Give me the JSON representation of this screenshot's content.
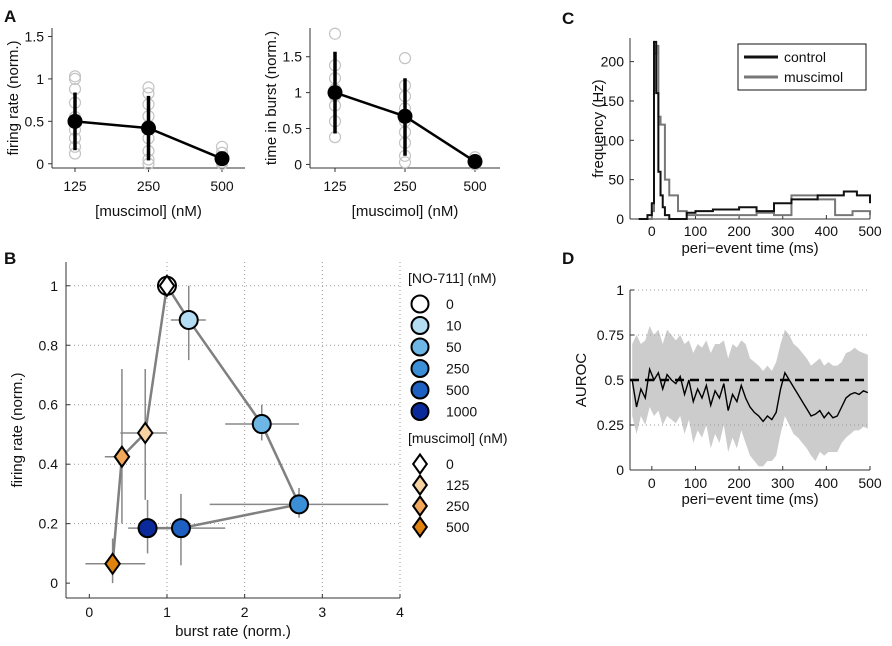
{
  "chart_data": [
    {
      "id": "A1",
      "panel": "A",
      "type": "scatter",
      "xlabel": "[muscimol] (nM)",
      "ylabel": "firing rate (norm.)",
      "categories": [
        "125",
        "250",
        "500"
      ],
      "ylim": [
        -0.05,
        1.6
      ],
      "yticks": [
        "0",
        "0.5",
        "1",
        "1.5"
      ],
      "means": [
        0.5,
        0.42,
        0.06
      ],
      "errors": [
        [
          0.16,
          0.84
        ],
        [
          0.04,
          0.8
        ],
        [
          0.0,
          0.13
        ]
      ],
      "points": [
        [
          1.03,
          1.0,
          0.88,
          0.72,
          0.55,
          0.4,
          0.3,
          0.2,
          0.12
        ],
        [
          0.9,
          0.83,
          0.7,
          0.56,
          0.45,
          0.3,
          0.15,
          0.05,
          0.0
        ],
        [
          0.2,
          0.13,
          0.06,
          0.02,
          0.0
        ]
      ]
    },
    {
      "id": "A2",
      "panel": "",
      "type": "scatter",
      "xlabel": "[muscimol] (nM)",
      "ylabel": "time in burst (norm.)",
      "categories": [
        "125",
        "250",
        "500"
      ],
      "ylim": [
        -0.05,
        1.9
      ],
      "yticks": [
        "0",
        "0.5",
        "1",
        "1.5"
      ],
      "means": [
        1.0,
        0.67,
        0.04
      ],
      "errors": [
        [
          0.43,
          1.57
        ],
        [
          0.12,
          1.2
        ],
        [
          0.0,
          0.1
        ]
      ],
      "points": [
        [
          1.82,
          1.38,
          1.2,
          1.05,
          0.95,
          0.82,
          0.6,
          0.38
        ],
        [
          1.48,
          1.1,
          0.95,
          0.78,
          0.6,
          0.45,
          0.3,
          0.12,
          0.03
        ],
        [
          0.1,
          0.05,
          0.02,
          0.0
        ]
      ]
    },
    {
      "id": "C",
      "panel": "C",
      "type": "line",
      "xlabel": "peri−event time (ms)",
      "ylabel": "frequency (Hz)",
      "xlim": [
        -50,
        500
      ],
      "ylim": [
        0,
        230
      ],
      "xticks": [
        0,
        100,
        200,
        300,
        400,
        500
      ],
      "yticks": [
        0,
        50,
        100,
        150,
        200
      ],
      "series": [
        {
          "name": "control",
          "color": "#111111",
          "x": [
            -30,
            -20,
            -10,
            0,
            5,
            10,
            15,
            20,
            25,
            30,
            40,
            60,
            80,
            100,
            140,
            200,
            240,
            280,
            320,
            380,
            440,
            470,
            500
          ],
          "y": [
            0,
            0,
            5,
            20,
            225,
            160,
            60,
            30,
            15,
            5,
            0,
            0,
            8,
            10,
            12,
            15,
            10,
            20,
            25,
            30,
            35,
            30,
            20
          ]
        },
        {
          "name": "muscimol",
          "color": "#777777",
          "x": [
            -30,
            0,
            5,
            10,
            15,
            20,
            30,
            40,
            60,
            80,
            100,
            140,
            200,
            240,
            280,
            320,
            380,
            420,
            460,
            500
          ],
          "y": [
            0,
            10,
            210,
            220,
            130,
            120,
            50,
            30,
            10,
            5,
            5,
            5,
            5,
            8,
            5,
            30,
            25,
            5,
            10,
            5
          ]
        }
      ]
    },
    {
      "id": "D",
      "panel": "D",
      "type": "line",
      "xlabel": "peri−event time (ms)",
      "ylabel": "AUROC",
      "xlim": [
        -50,
        500
      ],
      "ylim": [
        0,
        1
      ],
      "xticks": [
        0,
        100,
        200,
        300,
        400,
        500
      ],
      "yticks": [
        "0",
        "0.25",
        "0.5",
        "0.75",
        "1"
      ],
      "reference": 0.5,
      "series": [
        {
          "name": "AUROC",
          "x": [
            -45,
            -35,
            -25,
            -15,
            -5,
            5,
            15,
            25,
            35,
            45,
            55,
            65,
            75,
            85,
            95,
            105,
            115,
            125,
            135,
            145,
            155,
            165,
            175,
            185,
            195,
            205,
            215,
            225,
            235,
            245,
            255,
            265,
            275,
            285,
            295,
            305,
            315,
            325,
            335,
            345,
            355,
            365,
            375,
            385,
            395,
            405,
            415,
            425,
            435,
            445,
            455,
            465,
            475,
            485,
            495
          ],
          "y": [
            0.5,
            0.35,
            0.45,
            0.4,
            0.56,
            0.5,
            0.54,
            0.45,
            0.53,
            0.5,
            0.48,
            0.52,
            0.42,
            0.5,
            0.38,
            0.45,
            0.4,
            0.47,
            0.36,
            0.44,
            0.4,
            0.48,
            0.33,
            0.42,
            0.38,
            0.47,
            0.4,
            0.35,
            0.32,
            0.3,
            0.27,
            0.3,
            0.28,
            0.32,
            0.45,
            0.54,
            0.5,
            0.46,
            0.42,
            0.38,
            0.34,
            0.3,
            0.31,
            0.33,
            0.29,
            0.32,
            0.29,
            0.3,
            0.35,
            0.4,
            0.42,
            0.43,
            0.42,
            0.44,
            0.43
          ]
        }
      ],
      "band_upper": [
        0.7,
        0.75,
        0.7,
        0.72,
        0.8,
        0.75,
        0.78,
        0.7,
        0.78,
        0.75,
        0.72,
        0.75,
        0.7,
        0.72,
        0.65,
        0.7,
        0.68,
        0.72,
        0.65,
        0.7,
        0.7,
        0.72,
        0.62,
        0.7,
        0.68,
        0.72,
        0.7,
        0.62,
        0.6,
        0.58,
        0.55,
        0.58,
        0.55,
        0.6,
        0.7,
        0.78,
        0.75,
        0.7,
        0.68,
        0.65,
        0.62,
        0.58,
        0.6,
        0.62,
        0.58,
        0.6,
        0.58,
        0.58,
        0.6,
        0.65,
        0.66,
        0.68,
        0.66,
        0.65,
        0.64
      ],
      "band_lower": [
        0.3,
        0.2,
        0.3,
        0.25,
        0.35,
        0.3,
        0.33,
        0.25,
        0.3,
        0.28,
        0.26,
        0.3,
        0.2,
        0.28,
        0.15,
        0.22,
        0.18,
        0.25,
        0.12,
        0.2,
        0.15,
        0.25,
        0.1,
        0.18,
        0.12,
        0.22,
        0.15,
        0.08,
        0.05,
        0.02,
        0.02,
        0.05,
        0.05,
        0.08,
        0.2,
        0.3,
        0.25,
        0.2,
        0.18,
        0.15,
        0.12,
        0.08,
        0.05,
        0.1,
        0.08,
        0.1,
        0.1,
        0.1,
        0.15,
        0.18,
        0.2,
        0.22,
        0.22,
        0.24,
        0.23
      ]
    },
    {
      "id": "B",
      "panel": "B",
      "type": "scatter",
      "xlabel": "burst rate (norm.)",
      "ylabel": "firing rate (norm.)",
      "xlim": [
        -0.3,
        4
      ],
      "ylim": [
        -0.05,
        1.08
      ],
      "xticks": [
        "0",
        "1",
        "2",
        "3",
        "4"
      ],
      "yticks": [
        "0",
        "0.2",
        "0.4",
        "0.6",
        "0.8",
        "1"
      ],
      "no711": {
        "title": "[NO-711] (nM)",
        "labels": [
          "0",
          "10",
          "50",
          "250",
          "500",
          "1000"
        ],
        "colors": [
          "#ffffff",
          "#b4dcf2",
          "#6eb6e6",
          "#3b8fd6",
          "#1e5fc2",
          "#0a2a9a"
        ],
        "x": [
          1.0,
          1.28,
          2.22,
          2.7,
          1.18,
          0.75
        ],
        "y": [
          1.0,
          0.885,
          0.535,
          0.265,
          0.185,
          0.185
        ],
        "xerr": [
          [
            0.95,
            1.05
          ],
          [
            1.05,
            1.5
          ],
          [
            1.75,
            2.7
          ],
          [
            1.55,
            3.85
          ],
          [
            0.95,
            1.75
          ],
          [
            0.5,
            0.95
          ]
        ],
        "yerr": [
          [
            0.97,
            1.03
          ],
          [
            0.75,
            1.0
          ],
          [
            0.48,
            0.6
          ],
          [
            0.22,
            0.32
          ],
          [
            0.06,
            0.3
          ],
          [
            0.1,
            0.28
          ]
        ]
      },
      "muscimol": {
        "title": "[muscimol] (nM)",
        "labels": [
          "0",
          "125",
          "250",
          "500"
        ],
        "colors": [
          "#ffffff",
          "#f8d3a2",
          "#f2a85a",
          "#e0820e"
        ],
        "x": [
          1.0,
          0.72,
          0.42,
          0.3
        ],
        "y": [
          1.0,
          0.505,
          0.425,
          0.065
        ],
        "xerr": [
          [
            0.95,
            1.05
          ],
          [
            0.4,
            1.0
          ],
          [
            0.2,
            0.52
          ],
          [
            -0.05,
            0.72
          ]
        ],
        "yerr": [
          [
            0.97,
            1.03
          ],
          [
            0.28,
            0.72
          ],
          [
            0.2,
            0.72
          ],
          [
            0.0,
            0.15
          ]
        ]
      }
    }
  ]
}
